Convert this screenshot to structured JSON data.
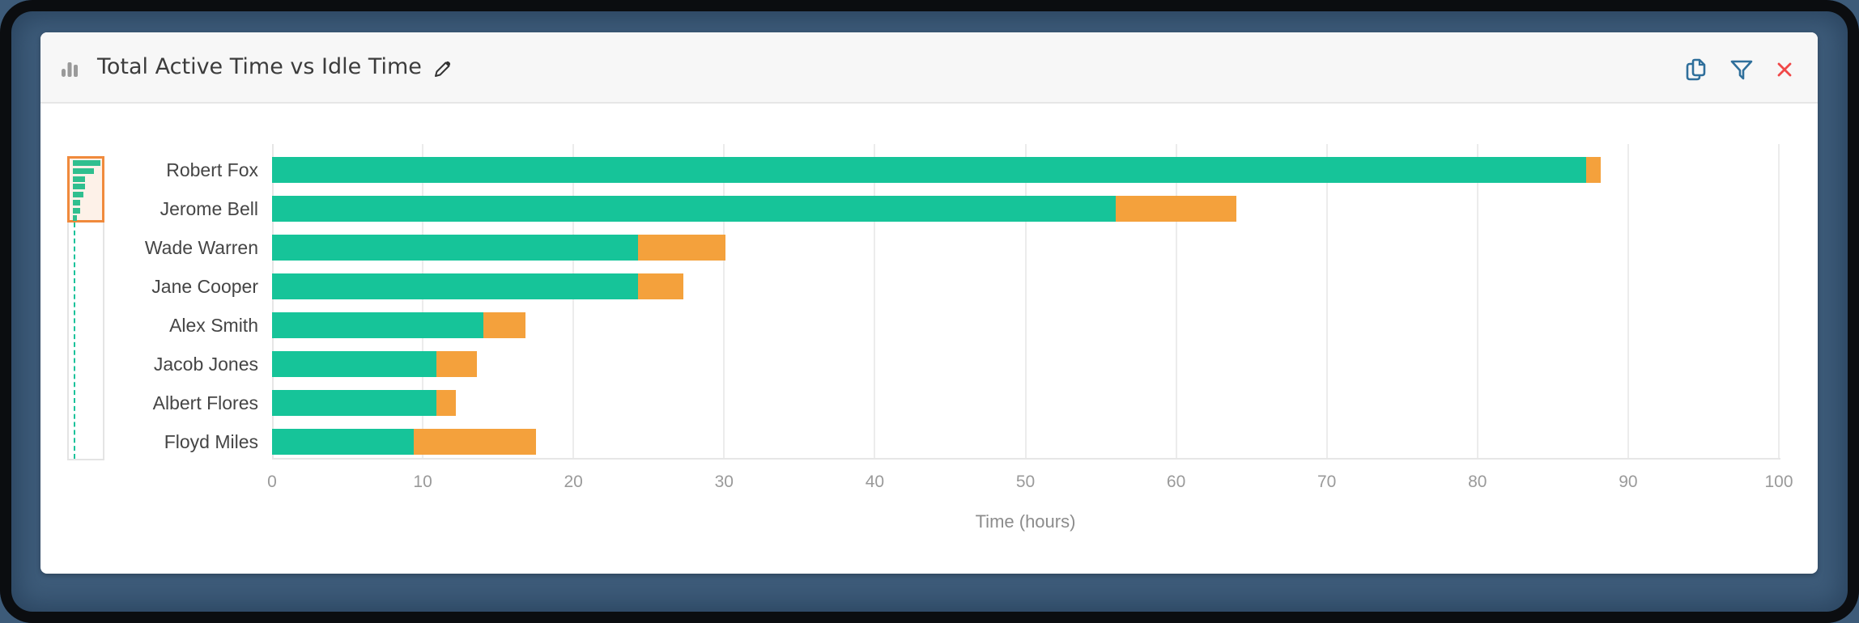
{
  "header": {
    "title": "Total Active Time vs Idle Time",
    "icons": {
      "chart_type": "bar-chart-icon",
      "edit": "pencil-icon",
      "copy": "copy-icon",
      "filter": "filter-icon",
      "close": "close-icon"
    }
  },
  "colors": {
    "active": "#16c499",
    "idle": "#f4a13c",
    "header_icon": "#2f6f9b",
    "close_icon": "#f04848",
    "minimap_window": "#f08a3c"
  },
  "chart_data": {
    "type": "bar",
    "orientation": "horizontal",
    "stacked": true,
    "title": "Total Active Time vs Idle Time",
    "xlabel": "Time (hours)",
    "ylabel": "",
    "xlim": [
      0,
      100
    ],
    "x_ticks": [
      0,
      10,
      20,
      30,
      40,
      50,
      60,
      70,
      80,
      90,
      100
    ],
    "grid": true,
    "legend": null,
    "categories": [
      "Robert Fox",
      "Jerome Bell",
      "Wade Warren",
      "Jane Cooper",
      "Alex Smith",
      "Jacob Jones",
      "Albert Flores",
      "Floyd Miles"
    ],
    "series": [
      {
        "name": "Active Time",
        "color": "#16c499",
        "values": [
          87.2,
          56.0,
          24.3,
          24.3,
          14.0,
          10.9,
          10.9,
          9.4
        ]
      },
      {
        "name": "Idle Time",
        "color": "#f4a13c",
        "values": [
          1.0,
          8.0,
          5.8,
          3.0,
          2.8,
          2.7,
          1.3,
          8.1
        ]
      }
    ]
  }
}
